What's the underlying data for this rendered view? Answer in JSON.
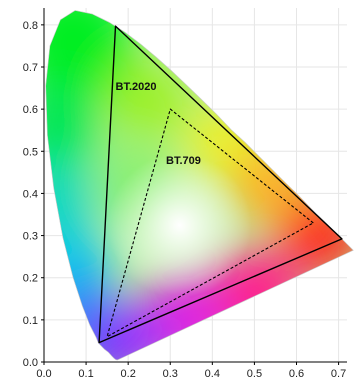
{
  "chart_data": {
    "type": "scatter",
    "title": "",
    "xlabel": "",
    "ylabel": "",
    "xlim": [
      0.0,
      0.72
    ],
    "ylim": [
      0.0,
      0.84
    ],
    "x_ticks": [
      "0.0",
      "0.1",
      "0.2",
      "0.3",
      "0.4",
      "0.5",
      "0.6",
      "0.7"
    ],
    "y_ticks": [
      "0.0",
      "0.1",
      "0.2",
      "0.3",
      "0.4",
      "0.5",
      "0.6",
      "0.7",
      "0.8"
    ],
    "grid": true,
    "spectral_locus": [
      [
        0.175,
        0.005
      ],
      [
        0.173,
        0.005
      ],
      [
        0.17,
        0.006
      ],
      [
        0.166,
        0.009
      ],
      [
        0.161,
        0.014
      ],
      [
        0.153,
        0.023
      ],
      [
        0.144,
        0.03
      ],
      [
        0.129,
        0.045
      ],
      [
        0.124,
        0.058
      ],
      [
        0.109,
        0.087
      ],
      [
        0.091,
        0.133
      ],
      [
        0.069,
        0.201
      ],
      [
        0.045,
        0.295
      ],
      [
        0.023,
        0.413
      ],
      [
        0.008,
        0.538
      ],
      [
        0.004,
        0.655
      ],
      [
        0.014,
        0.75
      ],
      [
        0.039,
        0.812
      ],
      [
        0.074,
        0.834
      ],
      [
        0.114,
        0.826
      ],
      [
        0.155,
        0.806
      ],
      [
        0.193,
        0.782
      ],
      [
        0.23,
        0.754
      ],
      [
        0.266,
        0.724
      ],
      [
        0.302,
        0.692
      ],
      [
        0.337,
        0.659
      ],
      [
        0.373,
        0.624
      ],
      [
        0.409,
        0.589
      ],
      [
        0.445,
        0.551
      ],
      [
        0.479,
        0.52
      ],
      [
        0.512,
        0.487
      ],
      [
        0.544,
        0.455
      ],
      [
        0.575,
        0.424
      ],
      [
        0.603,
        0.397
      ],
      [
        0.627,
        0.372
      ],
      [
        0.648,
        0.351
      ],
      [
        0.666,
        0.334
      ],
      [
        0.68,
        0.32
      ],
      [
        0.692,
        0.308
      ],
      [
        0.701,
        0.299
      ],
      [
        0.708,
        0.292
      ],
      [
        0.713,
        0.287
      ],
      [
        0.735,
        0.265
      ]
    ],
    "gamuts": [
      {
        "name": "BT.2020",
        "style": "solid",
        "points": [
          [
            0.708,
            0.292
          ],
          [
            0.17,
            0.797
          ],
          [
            0.131,
            0.046
          ]
        ]
      },
      {
        "name": "BT.709",
        "style": "dashed",
        "points": [
          [
            0.64,
            0.33
          ],
          [
            0.3,
            0.6
          ],
          [
            0.15,
            0.06
          ]
        ]
      }
    ],
    "white_point": [
      0.3127,
      0.329
    ],
    "gamut_labels": [
      {
        "text": "BT.2020",
        "x": 0.17,
        "y": 0.645
      },
      {
        "text": "BT.709",
        "x": 0.29,
        "y": 0.47
      }
    ]
  }
}
